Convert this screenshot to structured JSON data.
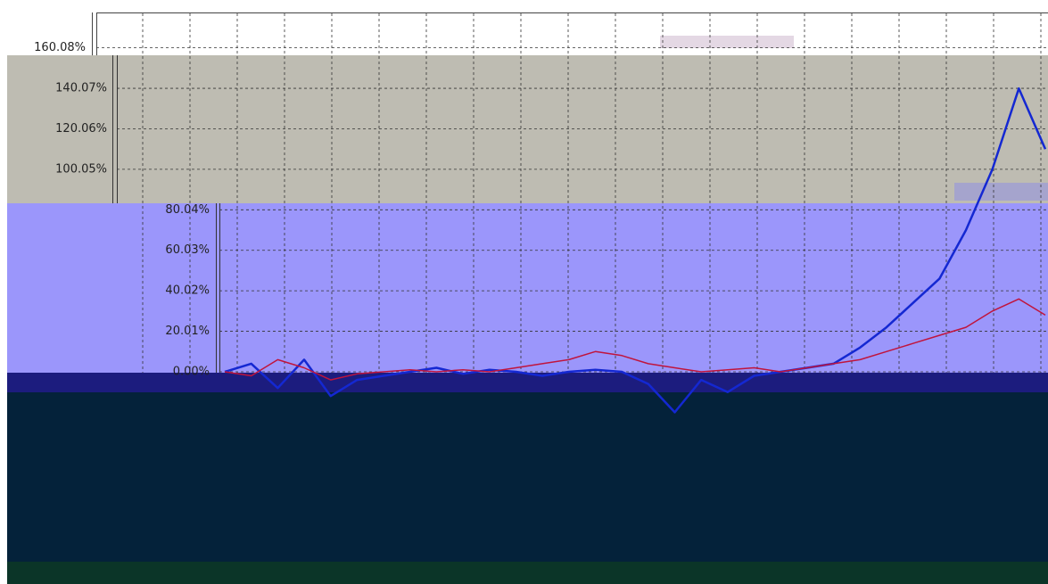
{
  "chart_data": {
    "type": "line",
    "categories": [
      null,
      null,
      null,
      null,
      null,
      null,
      null,
      null,
      null,
      null,
      null,
      null,
      null,
      null,
      null,
      null,
      null,
      null,
      null,
      null,
      null,
      null,
      null,
      null,
      null,
      null,
      null,
      null,
      null,
      null,
      null,
      null
    ],
    "series": [
      {
        "color": "#1428d2",
        "values": [
          0,
          4,
          -8,
          6,
          -12,
          -4,
          -2,
          0,
          2,
          -1,
          1,
          0,
          -2,
          0,
          1,
          0,
          -6,
          -20,
          -4,
          -10,
          -2,
          0,
          2,
          4,
          12,
          22,
          34,
          46,
          70,
          100,
          140,
          110
        ]
      },
      {
        "color": "#c0143c",
        "values": [
          0,
          -2,
          6,
          2,
          -4,
          -1,
          0,
          1,
          0,
          1,
          0,
          2,
          4,
          6,
          10,
          8,
          4,
          2,
          0,
          1,
          2,
          0,
          2,
          4,
          6,
          10,
          14,
          18,
          22,
          30,
          36,
          28
        ]
      }
    ],
    "ylim": [
      -100,
      180
    ],
    "yticks": [
      {
        "value": 0,
        "label": "0.00%"
      },
      {
        "value": 20.01,
        "label": "20.01%"
      },
      {
        "value": 40.02,
        "label": "40.02%"
      },
      {
        "value": 60.03,
        "label": "60.03%"
      },
      {
        "value": 80.04,
        "label": "80.04%"
      },
      {
        "value": 100.05,
        "label": "100.05%"
      },
      {
        "value": 120.06,
        "label": "120.06%"
      },
      {
        "value": 140.07,
        "label": "140.07%"
      },
      {
        "value": 160.08,
        "label": "160.08%"
      }
    ],
    "grid": true
  }
}
